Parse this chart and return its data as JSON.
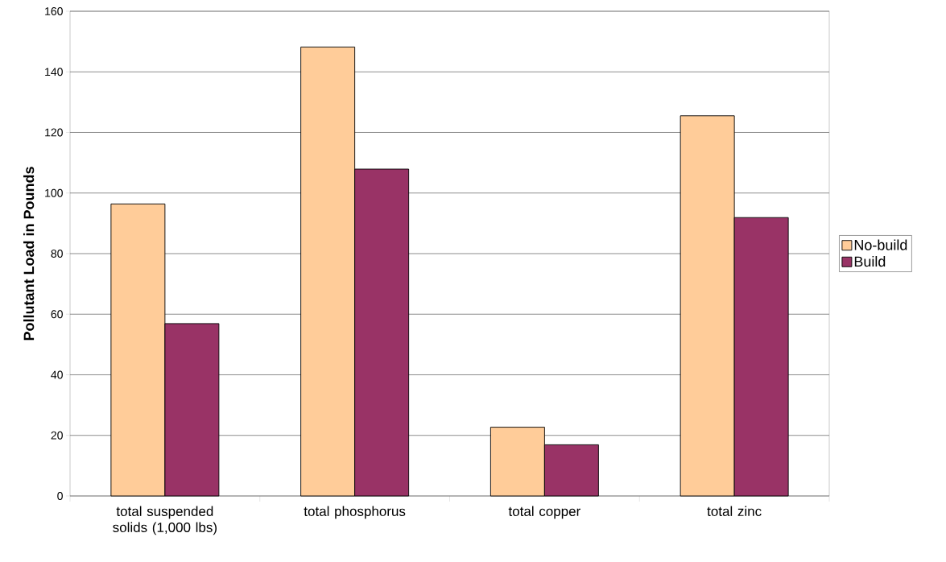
{
  "chart_data": {
    "type": "bar",
    "ylabel": "Pollutant Load in Pounds",
    "categories": [
      "total suspended solids (1,000 lbs)",
      "total phosphorus",
      "total copper",
      "total zinc"
    ],
    "series": [
      {
        "name": "No-build",
        "color": "#ffcc99",
        "values": [
          96.4,
          148.2,
          22.7,
          125.5
        ]
      },
      {
        "name": "Build",
        "color": "#993366",
        "values": [
          56.9,
          107.9,
          16.9,
          91.9
        ]
      }
    ],
    "ylim": [
      0,
      160
    ],
    "yticks": [
      0,
      20,
      40,
      60,
      80,
      100,
      120,
      140,
      160
    ],
    "grid": "y",
    "legend": "right"
  }
}
